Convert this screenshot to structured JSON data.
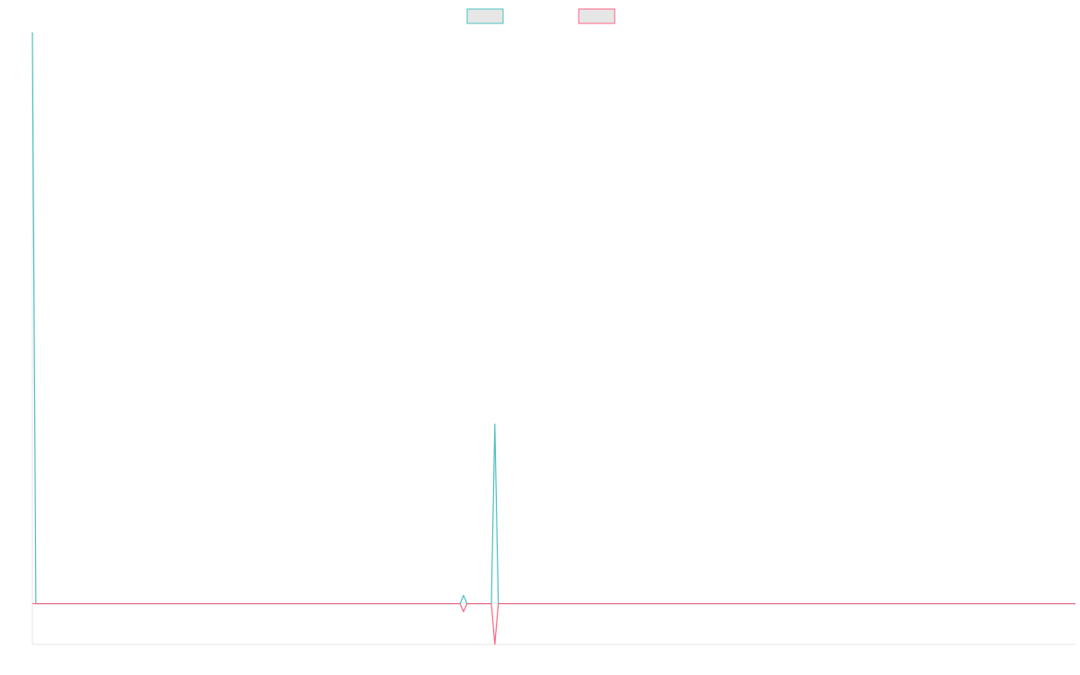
{
  "chart_data": {
    "type": "line",
    "title": "",
    "xlabel": "",
    "ylabel": "",
    "grid": false,
    "legend_position": "top-center",
    "xlim": [
      0,
      300
    ],
    "ylim": [
      -10,
      140
    ],
    "x": [
      0,
      1,
      2,
      3,
      123,
      124,
      125,
      132,
      133,
      134,
      135,
      300
    ],
    "series": [
      {
        "color": "#4bc0c0",
        "fill": "#e6e6e6",
        "values": [
          140,
          0,
          0,
          0,
          0,
          2,
          0,
          0,
          44,
          0,
          0,
          0
        ]
      },
      {
        "color": "#ff6384",
        "fill": "#e6e6e6",
        "values": [
          0,
          0,
          0,
          0,
          0,
          -2,
          0,
          0,
          -10,
          0,
          0,
          0
        ]
      }
    ]
  }
}
